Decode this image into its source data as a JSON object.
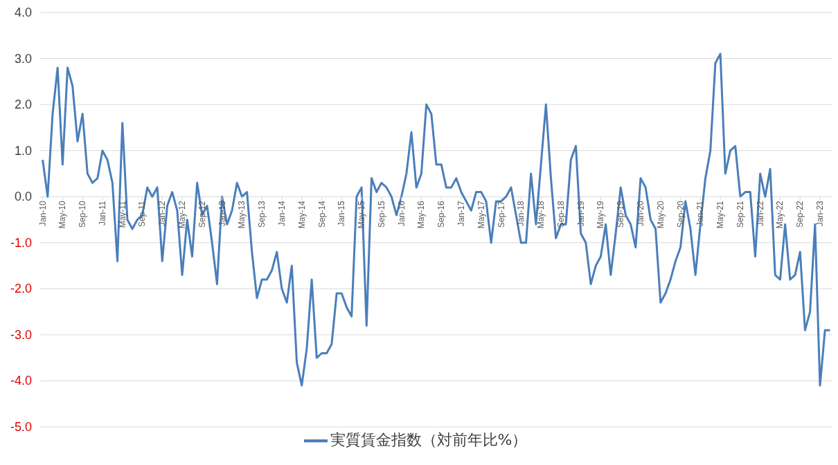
{
  "chart_data": {
    "type": "line",
    "categories": [
      "Jan-10",
      null,
      null,
      null,
      "May-10",
      null,
      null,
      null,
      "Sep-10",
      null,
      null,
      null,
      "Jan-11",
      null,
      null,
      null,
      "May-11",
      null,
      null,
      null,
      "Sep-11",
      null,
      null,
      null,
      "Jan-12",
      null,
      null,
      null,
      "May-12",
      null,
      null,
      null,
      "Sep-12",
      null,
      null,
      null,
      "Jan-13",
      null,
      null,
      null,
      "May-13",
      null,
      null,
      null,
      "Sep-13",
      null,
      null,
      null,
      "Jan-14",
      null,
      null,
      null,
      "May-14",
      null,
      null,
      null,
      "Sep-14",
      null,
      null,
      null,
      "Jan-15",
      null,
      null,
      null,
      "May-15",
      null,
      null,
      null,
      "Sep-15",
      null,
      null,
      null,
      "Jan-16",
      null,
      null,
      null,
      "May-16",
      null,
      null,
      null,
      "Sep-16",
      null,
      null,
      null,
      "Jan-17",
      null,
      null,
      null,
      "May-17",
      null,
      null,
      null,
      "Sep-17",
      null,
      null,
      null,
      "Jan-18",
      null,
      null,
      null,
      "May-18",
      null,
      null,
      null,
      "Sep-18",
      null,
      null,
      null,
      "Jan-19",
      null,
      null,
      null,
      "May-19",
      null,
      null,
      null,
      "Sep-19",
      null,
      null,
      null,
      "Jan-20",
      null,
      null,
      null,
      "May-20",
      null,
      null,
      null,
      "Sep-20",
      null,
      null,
      null,
      "Jan-21",
      null,
      null,
      null,
      "May-21",
      null,
      null,
      null,
      "Sep-21",
      null,
      null,
      null,
      "Jan-22",
      null,
      null,
      null,
      "May-22",
      null,
      null,
      null,
      "Sep-22",
      null,
      null,
      null,
      "Jan-23",
      null,
      null
    ],
    "series": [
      {
        "name": "実質賃金指数（対前年比%）",
        "color": "#4a7ebb",
        "values": [
          0.8,
          0.0,
          1.8,
          2.8,
          0.7,
          2.8,
          2.4,
          1.2,
          1.8,
          0.5,
          0.3,
          0.4,
          1.0,
          0.8,
          0.3,
          -1.4,
          1.6,
          -0.5,
          -0.7,
          -0.5,
          -0.4,
          0.2,
          0.0,
          0.2,
          -1.4,
          -0.2,
          0.1,
          -0.3,
          -1.7,
          -0.5,
          -1.3,
          0.3,
          -0.4,
          -0.2,
          -1.0,
          -1.9,
          0.0,
          -0.6,
          -0.3,
          0.3,
          0.0,
          0.1,
          -1.2,
          -2.2,
          -1.8,
          -1.8,
          -1.6,
          -1.2,
          -2.0,
          -2.3,
          -1.5,
          -3.6,
          -4.1,
          -3.3,
          -1.8,
          -3.5,
          -3.4,
          -3.4,
          -3.2,
          -2.1,
          -2.1,
          -2.4,
          -2.6,
          0.0,
          0.2,
          -2.8,
          0.4,
          0.1,
          0.3,
          0.2,
          0.0,
          -0.4,
          0.0,
          0.5,
          1.4,
          0.2,
          0.5,
          2.0,
          1.8,
          0.7,
          0.7,
          0.2,
          0.2,
          0.4,
          0.1,
          -0.1,
          -0.3,
          0.1,
          0.1,
          -0.1,
          -1.0,
          -0.1,
          -0.1,
          0.0,
          0.2,
          -0.4,
          -1.0,
          -1.0,
          0.5,
          -0.6,
          0.7,
          2.0,
          0.4,
          -0.9,
          -0.6,
          -0.6,
          0.8,
          1.1,
          -0.8,
          -1.0,
          -1.9,
          -1.5,
          -1.3,
          -0.6,
          -1.7,
          -0.8,
          0.2,
          -0.4,
          -0.6,
          -1.1,
          0.4,
          0.2,
          -0.5,
          -0.7,
          -2.3,
          -2.1,
          -1.8,
          -1.4,
          -1.1,
          -0.1,
          -0.7,
          -1.7,
          -0.6,
          0.4,
          1.0,
          2.9,
          3.1,
          0.5,
          1.0,
          1.1,
          0.0,
          0.1,
          0.1,
          -1.3,
          0.5,
          0.0,
          0.6,
          -1.7,
          -1.8,
          -0.6,
          -1.8,
          -1.7,
          -1.2,
          -2.9,
          -2.5,
          -0.6,
          -4.1,
          -2.9,
          -2.9
        ]
      }
    ],
    "ylim": [
      -5,
      4
    ],
    "yticks": [
      {
        "value": -5,
        "label": "-5.0"
      },
      {
        "value": -4,
        "label": "-4.0"
      },
      {
        "value": -3,
        "label": "-3.0"
      },
      {
        "value": -2,
        "label": "-2.0"
      },
      {
        "value": -1,
        "label": "-1.0"
      },
      {
        "value": 0,
        "label": "0.0"
      },
      {
        "value": 1,
        "label": "1.0"
      },
      {
        "value": 2,
        "label": "2.0"
      },
      {
        "value": 3,
        "label": "3.0"
      },
      {
        "value": 4,
        "label": "4.0"
      }
    ],
    "grid": "y",
    "legend": "bottom",
    "line_style": "solid"
  }
}
